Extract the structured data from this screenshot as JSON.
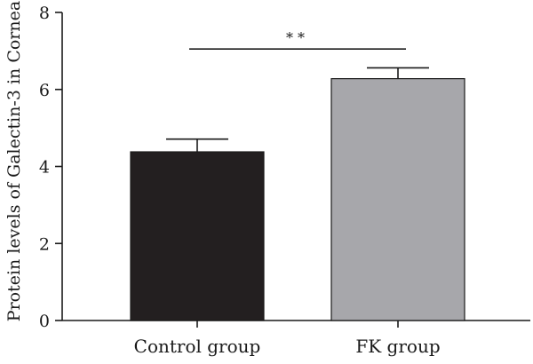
{
  "chart_data": {
    "type": "bar",
    "categories": [
      "Control group",
      "FK group"
    ],
    "values": [
      4.38,
      6.28
    ],
    "error": [
      0.33,
      0.28
    ],
    "colors": [
      "#231f20",
      "#a7a7ab"
    ],
    "ylabel": "Protein levels of Galectin-3 in Cornea",
    "xlabel": "",
    "ylim": [
      0,
      8
    ],
    "yticks": [
      0,
      2,
      4,
      6,
      8
    ],
    "grid": false,
    "significance": {
      "between": [
        "Control group",
        "FK group"
      ],
      "label": "**",
      "y": 7.05
    }
  }
}
